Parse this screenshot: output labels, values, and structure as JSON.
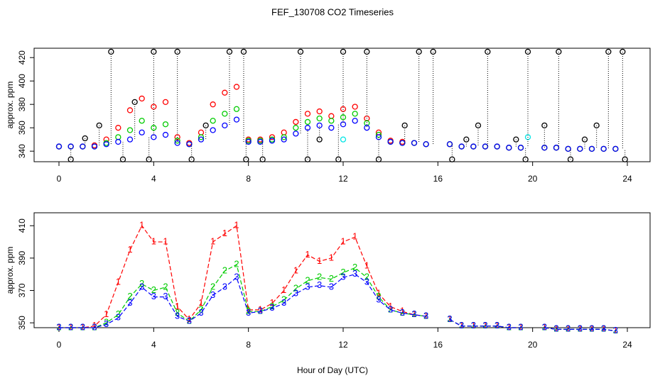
{
  "chart_data": [
    {
      "type": "scatter",
      "title": "FEF_130708  CO2 Timeseries",
      "ylabel": "approx. ppm",
      "x": [
        0,
        0.5,
        1,
        1.5,
        2,
        2.5,
        3,
        3.5,
        4,
        4.5,
        5,
        5.5,
        6,
        6.5,
        7,
        7.5,
        8,
        8.5,
        9,
        9.5,
        10,
        10.5,
        11,
        11.5,
        12,
        12.5,
        13,
        13.5,
        14,
        14.5,
        15,
        15.5,
        16,
        16.5,
        17,
        17.5,
        18,
        18.5,
        19,
        19.5,
        20,
        20.5,
        21,
        21.5,
        22,
        22.5,
        23,
        23.5
      ],
      "series": [
        {
          "color": "#ff0000",
          "values": [
            344,
            344,
            344,
            345,
            350,
            360,
            375,
            385,
            378,
            382,
            352,
            347,
            356,
            380,
            390,
            395,
            350,
            350,
            352,
            356,
            365,
            372,
            374,
            370,
            376,
            378,
            368,
            356,
            349,
            348,
            347,
            346,
            null,
            346,
            344,
            344,
            344,
            344,
            343,
            343,
            null,
            343,
            343,
            342,
            342,
            342,
            342,
            342
          ]
        },
        {
          "color": "#00cc00",
          "values": [
            344,
            344,
            344,
            344,
            347,
            352,
            358,
            366,
            360,
            363,
            349,
            346,
            352,
            366,
            372,
            376,
            349,
            349,
            350,
            352,
            360,
            365,
            368,
            366,
            369,
            372,
            364,
            354,
            348,
            347,
            347,
            346,
            null,
            346,
            344,
            344,
            344,
            344,
            343,
            343,
            null,
            343,
            343,
            342,
            342,
            342,
            342,
            342
          ]
        },
        {
          "color": "#0000ff",
          "values": [
            344,
            344,
            344,
            344,
            346,
            348,
            350,
            356,
            352,
            354,
            347,
            346,
            350,
            358,
            362,
            367,
            348,
            348,
            349,
            350,
            355,
            360,
            362,
            360,
            363,
            366,
            360,
            352,
            348,
            347,
            347,
            346,
            null,
            346,
            344,
            344,
            344,
            344,
            343,
            343,
            null,
            343,
            343,
            342,
            342,
            342,
            342,
            342
          ]
        },
        {
          "color": "#00e5e5",
          "x": [
            12,
            19.8
          ],
          "values": [
            350,
            352
          ]
        },
        {
          "color": "#000000",
          "dotted": true,
          "x": [
            0.5,
            1.1,
            1.7,
            2.2,
            2.7,
            3.2,
            3.8,
            4,
            5,
            5.6,
            6.2,
            7.2,
            7.8,
            7.9,
            8.6,
            10.2,
            10.5,
            11,
            11.8,
            12,
            13,
            13.5,
            14.6,
            15.2,
            15.8,
            16.6,
            17.2,
            17.7,
            18.1,
            19.3,
            19.7,
            19.8,
            20.5,
            21.1,
            21.6,
            22.2,
            22.7,
            23.2,
            23.8,
            23.9
          ],
          "values": [
            333,
            351,
            362,
            425,
            333,
            382,
            333,
            425,
            425,
            333,
            362,
            425,
            425,
            333,
            333,
            425,
            333,
            350,
            333,
            425,
            425,
            333,
            362,
            425,
            425,
            333,
            350,
            362,
            425,
            350,
            333,
            425,
            362,
            425,
            333,
            350,
            362,
            425,
            425,
            333
          ]
        }
      ],
      "xlim": [
        -1.05,
        24.96
      ],
      "xticks": [
        0,
        4,
        8,
        12,
        16,
        20,
        24
      ],
      "ylim": [
        331,
        428
      ],
      "yticks": [
        340,
        360,
        380,
        400,
        420
      ]
    },
    {
      "type": "line",
      "xlabel": "Hour of Day (UTC)",
      "ylabel": "approx. ppm",
      "x": [
        0,
        0.5,
        1,
        1.5,
        2,
        2.5,
        3,
        3.5,
        4,
        4.5,
        5,
        5.5,
        6,
        6.5,
        7,
        7.5,
        8,
        8.5,
        9,
        9.5,
        10,
        10.5,
        11,
        11.5,
        12,
        12.5,
        13,
        13.5,
        14,
        14.5,
        15,
        15.5,
        16,
        16.5,
        17,
        17.5,
        18,
        18.5,
        19,
        19.5,
        20,
        20.5,
        21,
        21.5,
        22,
        22.5,
        23,
        23.5
      ],
      "series": [
        {
          "marker": "1",
          "color": "#ff0000",
          "values": [
            347,
            347,
            347,
            348,
            355,
            375,
            395,
            410,
            400,
            400,
            360,
            352,
            362,
            400,
            405,
            410,
            358,
            358,
            362,
            370,
            382,
            392,
            388,
            390,
            400,
            403,
            385,
            368,
            360,
            357,
            355,
            354,
            null,
            352,
            348,
            348,
            348,
            348,
            347,
            347,
            null,
            347,
            346,
            346,
            346,
            346,
            346,
            345
          ]
        },
        {
          "marker": "2",
          "color": "#00cc00",
          "values": [
            347,
            347,
            347,
            347,
            350,
            355,
            366,
            374,
            370,
            372,
            356,
            351,
            358,
            372,
            382,
            386,
            357,
            357,
            360,
            364,
            371,
            376,
            378,
            377,
            381,
            384,
            378,
            366,
            358,
            356,
            355,
            354,
            null,
            352,
            348,
            348,
            348,
            348,
            347,
            347,
            null,
            347,
            346,
            346,
            346,
            346,
            346,
            345
          ]
        },
        {
          "marker": "3",
          "color": "#0000ff",
          "values": [
            347,
            347,
            347,
            347,
            349,
            353,
            362,
            372,
            366,
            366,
            354,
            351,
            356,
            367,
            372,
            378,
            356,
            357,
            359,
            362,
            368,
            372,
            373,
            372,
            378,
            380,
            375,
            364,
            358,
            356,
            355,
            354,
            null,
            352,
            348,
            348,
            348,
            348,
            347,
            347,
            null,
            347,
            346,
            346,
            346,
            346,
            346,
            345
          ]
        }
      ],
      "xlim": [
        -1.05,
        24.96
      ],
      "xticks": [
        0,
        4,
        8,
        12,
        16,
        20,
        24
      ],
      "ylim": [
        347,
        418
      ],
      "yticks": [
        350,
        370,
        390,
        410
      ]
    }
  ]
}
